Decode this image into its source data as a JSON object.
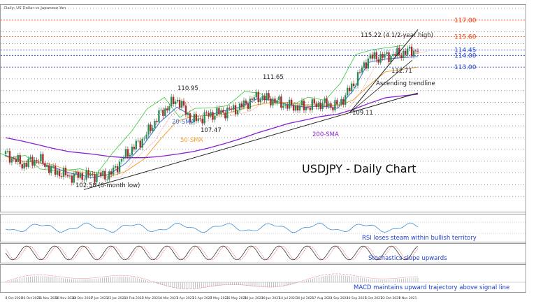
{
  "header": {
    "caption": "Daily: US Dollar vs Japanese Yen"
  },
  "main_title": "USDJPY - Daily Chart",
  "colors": {
    "candle_up": "#2e8b57",
    "candle_down": "#a52a2a",
    "sma200": "#8b1ecf",
    "sma50": "#f0a030",
    "sma20": "#3a6fd8",
    "ichimoku_green": "#33cc33",
    "ichimoku_red": "#ff6666",
    "resistance_red": "#ff3300",
    "support_blue": "#1f3fd0",
    "annotation_blue": "#1f3fd0",
    "macd_red": "#e85050"
  },
  "price_levels": [
    {
      "label": "117.00",
      "value": 117.0,
      "color": "red"
    },
    {
      "label": "115.60",
      "value": 115.6,
      "color": "red"
    },
    {
      "label": "114.45",
      "value": 114.45,
      "color": "blue"
    },
    {
      "label": "114.00",
      "value": 114.0,
      "color": "blue"
    },
    {
      "label": "113.00",
      "value": 113.0,
      "color": "blue"
    }
  ],
  "price_annotations": {
    "high_label": "115.22 (4 1/2-year high)",
    "p11271": "112.71",
    "p11165": "111.65",
    "p11095": "110.95",
    "p10911": "109.11",
    "p10747": "107.47",
    "low_label": "102.58 (8-month low)",
    "trendline": "Ascending trendline",
    "sma20": "20-SMA",
    "sma50": "50-SMA",
    "sma200": "200-SMA"
  },
  "indicator_captions": {
    "rsi": "RSI loses steam within bullish territory",
    "stoch": "Stochastics slope upwards",
    "macd": "MACD maintains upward trajectory above signal line"
  },
  "x_tick_labels": [
    "8 Oct 2020",
    "26 Oct 2020",
    "11 Nov 2020",
    "26 Nov 2020",
    "14 Dec 2020",
    "7 Jan 2021",
    "25 Jan 2021",
    "10 Feb 2021",
    "2 Mar 2021",
    "18 Mar 2021",
    "5 Apr 2021",
    "21 Apr 2021",
    "7 May 2021",
    "25 May 2021",
    "10 Jun 2021",
    "28 Jun 2021",
    "14 Jul 2021",
    "30 Jul 2021",
    "17 Aug 2021",
    "2 Sep 2021",
    "20 Sep 2021",
    "6 Oct 2021",
    "22 Oct 2021",
    "9 Nov 2021"
  ],
  "chart_data": {
    "type": "candlestick",
    "title": "USDJPY - Daily Chart",
    "ylim": [
      101.0,
      118.0
    ],
    "x": [
      "2020-10-08",
      "2020-10-26",
      "2020-11-11",
      "2020-11-26",
      "2020-12-14",
      "2021-01-07",
      "2021-01-25",
      "2021-02-10",
      "2021-03-02",
      "2021-03-18",
      "2021-04-05",
      "2021-04-21",
      "2021-05-07",
      "2021-05-25",
      "2021-06-10",
      "2021-06-28",
      "2021-07-14",
      "2021-07-30",
      "2021-08-17",
      "2021-09-02",
      "2021-09-20",
      "2021-10-06",
      "2021-10-22",
      "2021-11-09",
      "2021-11-15"
    ],
    "close": [
      105.6,
      104.7,
      105.2,
      104.2,
      103.7,
      103.8,
      103.8,
      105.5,
      107.0,
      109.0,
      110.3,
      108.4,
      108.9,
      109.2,
      109.6,
      110.5,
      110.2,
      109.7,
      109.6,
      109.9,
      109.7,
      111.5,
      113.8,
      113.9,
      114.5
    ],
    "key_points": [
      {
        "label": "102.58 (8-month low)",
        "value": 102.58
      },
      {
        "label": "110.95",
        "value": 110.95
      },
      {
        "label": "107.47",
        "value": 107.47
      },
      {
        "label": "111.65",
        "value": 111.65
      },
      {
        "label": "109.11",
        "value": 109.11
      },
      {
        "label": "112.71",
        "value": 112.71
      },
      {
        "label": "115.22 (4 1/2-year high)",
        "value": 115.22
      }
    ],
    "series": [
      {
        "name": "20-SMA",
        "values": [
          105.5,
          105.0,
          104.9,
          104.5,
          104.0,
          103.6,
          103.9,
          104.8,
          106.5,
          108.3,
          109.6,
          108.8,
          108.9,
          109.3,
          109.6,
          110.3,
          110.2,
          109.8,
          109.6,
          109.7,
          109.5,
          111.0,
          113.4,
          113.7,
          113.9
        ]
      },
      {
        "name": "50-SMA",
        "values": [
          105.4,
          105.0,
          104.9,
          104.7,
          104.2,
          103.9,
          103.7,
          104.1,
          105.2,
          106.8,
          108.4,
          108.8,
          108.9,
          109.0,
          109.4,
          109.8,
          110.0,
          110.0,
          109.8,
          109.8,
          109.7,
          110.2,
          111.4,
          112.6,
          113.0
        ]
      },
      {
        "name": "200-SMA",
        "values": [
          107.0,
          106.7,
          106.4,
          106.1,
          105.8,
          105.6,
          105.4,
          105.3,
          105.3,
          105.4,
          105.6,
          105.8,
          106.1,
          106.5,
          106.9,
          107.4,
          107.8,
          108.2,
          108.5,
          108.8,
          109.0,
          109.4,
          109.9,
          110.4,
          110.7
        ]
      }
    ]
  }
}
